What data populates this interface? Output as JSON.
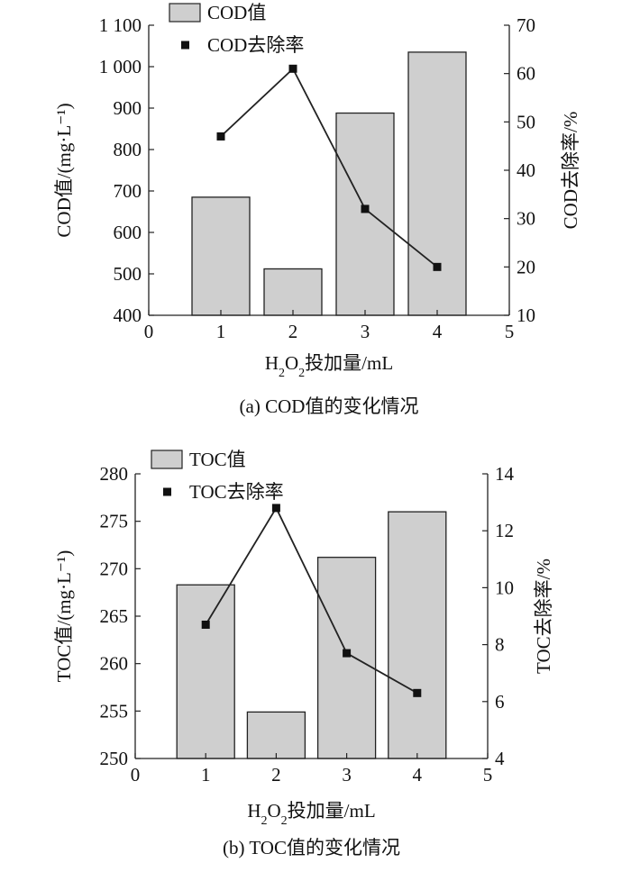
{
  "chart_data": [
    {
      "type": "bar",
      "caption": "(a) COD值的变化情况",
      "x": [
        1,
        2,
        3,
        4
      ],
      "xticks": [
        "0",
        "1",
        "2",
        "3",
        "4",
        "5"
      ],
      "xlim": [
        0,
        5
      ],
      "xlabel": {
        "main": "H",
        "sub1": "2",
        "mid": "O",
        "sub2": "2",
        "rest": "投加量/mL"
      },
      "ylabel_left": "COD值/(mg·L⁻¹)",
      "ylabel_right": "COD去除率/%",
      "ylim_left": [
        400,
        1100
      ],
      "yticks_left": [
        "400",
        "500",
        "600",
        "700",
        "800",
        "900",
        "1 000",
        "1 100"
      ],
      "ylim_right": [
        10,
        70
      ],
      "yticks_right": [
        "10",
        "20",
        "30",
        "40",
        "50",
        "60",
        "70"
      ],
      "series": [
        {
          "name": "COD值",
          "kind": "bar",
          "axis": "left",
          "values": [
            685,
            512,
            888,
            1035
          ],
          "color": "#cfcfcf"
        },
        {
          "name": "COD去除率",
          "kind": "line",
          "axis": "right",
          "values": [
            47,
            61,
            32,
            20
          ],
          "color": "#111111"
        }
      ],
      "legend_position": "top-left"
    },
    {
      "type": "bar",
      "caption": "(b) TOC值的变化情况",
      "x": [
        1,
        2,
        3,
        4
      ],
      "xticks": [
        "0",
        "1",
        "2",
        "3",
        "4",
        "5"
      ],
      "xlim": [
        0,
        5
      ],
      "xlabel": {
        "main": "H",
        "sub1": "2",
        "mid": "O",
        "sub2": "2",
        "rest": "投加量/mL"
      },
      "ylabel_left": "TOC值/(mg·L⁻¹)",
      "ylabel_right": "TOC去除率/%",
      "ylim_left": [
        250,
        280
      ],
      "yticks_left": [
        "250",
        "255",
        "260",
        "265",
        "270",
        "275",
        "280"
      ],
      "ylim_right": [
        4,
        14
      ],
      "yticks_right": [
        "4",
        "6",
        "8",
        "10",
        "12",
        "14"
      ],
      "series": [
        {
          "name": "TOC值",
          "kind": "bar",
          "axis": "left",
          "values": [
            268.3,
            254.9,
            271.2,
            276.0
          ],
          "color": "#cfcfcf"
        },
        {
          "name": "TOC去除率",
          "kind": "line",
          "axis": "right",
          "values": [
            8.7,
            12.8,
            7.7,
            6.3
          ],
          "color": "#111111"
        }
      ],
      "legend_position": "top-left"
    }
  ]
}
